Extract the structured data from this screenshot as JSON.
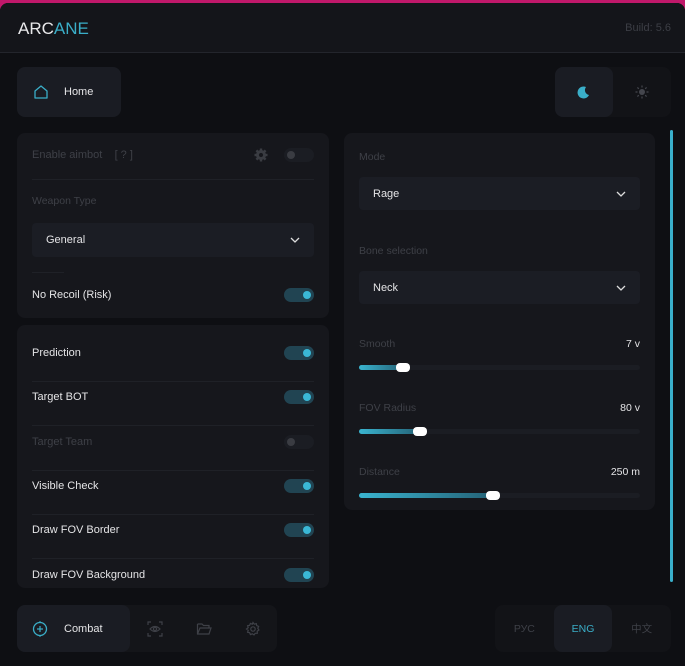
{
  "header": {
    "logo_a": "ARC",
    "logo_b": "ANE",
    "build": "Build: 5.6"
  },
  "top": {
    "home_label": "Home",
    "theme_active": "dark"
  },
  "left": {
    "enable_aimbot": {
      "label": "Enable aimbot",
      "help": "[ ? ]",
      "on": false
    },
    "weapon_type": {
      "label": "Weapon Type",
      "value": "General"
    },
    "no_recoil": {
      "label": "No Recoil (Risk)",
      "on": true
    },
    "toggles": [
      {
        "label": "Prediction",
        "on": true,
        "disabled": false
      },
      {
        "label": "Target BOT",
        "on": true,
        "disabled": false
      },
      {
        "label": "Target Team",
        "on": false,
        "disabled": true
      },
      {
        "label": "Visible Check",
        "on": true,
        "disabled": false
      },
      {
        "label": "Draw FOV Border",
        "on": true,
        "disabled": false
      },
      {
        "label": "Draw FOV Background",
        "on": true,
        "disabled": false
      }
    ]
  },
  "right": {
    "mode": {
      "label": "Mode",
      "value": "Rage"
    },
    "bone": {
      "label": "Bone selection",
      "value": "Neck"
    },
    "sliders": [
      {
        "label": "Smooth",
        "value": "7 v",
        "fraction": 0.16
      },
      {
        "label": "FOV Radius",
        "value": "80 v",
        "fraction": 0.22
      },
      {
        "label": "Distance",
        "value": "250 m",
        "fraction": 0.48
      }
    ]
  },
  "nav": {
    "combat_label": "Combat",
    "icons": [
      "eye-scan-icon",
      "folder-icon",
      "gear-icon"
    ]
  },
  "lang": {
    "items": [
      "РУС",
      "ENG",
      "中文"
    ],
    "active": "ENG"
  },
  "colors": {
    "accent": "#3aaec8",
    "background": "#0e0f13",
    "card": "#16171c"
  }
}
